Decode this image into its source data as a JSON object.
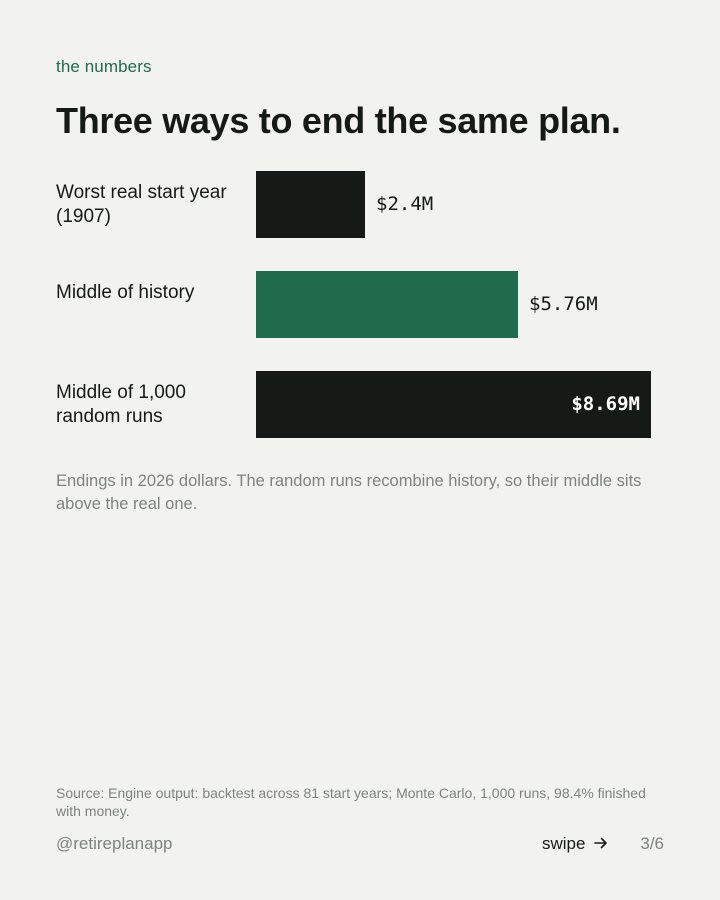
{
  "header": {
    "eyebrow": "the numbers",
    "title": "Three ways to end the same plan."
  },
  "chart_data": {
    "type": "bar",
    "orientation": "horizontal",
    "categories": [
      "Worst real start year (1907)",
      "Middle of history",
      "Middle of 1,000 random runs"
    ],
    "values": [
      2.4,
      5.76,
      8.69
    ],
    "value_labels": [
      "$2.4M",
      "$5.76M",
      "$8.69M"
    ],
    "units": "$M",
    "bar_colors": [
      "#161a17",
      "#1f6b4b",
      "#161a17"
    ],
    "xlim": [
      0,
      8.69
    ],
    "title": "",
    "xlabel": "",
    "ylabel": ""
  },
  "note": "Endings in 2026 dollars. The random runs recombine history, so their middle sits above the real one.",
  "footer": {
    "source": "Source: Engine output: backtest across 81 start years; Monte Carlo, 1,000 runs, 98.4% finished with money.",
    "handle": "@retireplanapp",
    "swipe_label": "swipe",
    "swipe_icon": "arrow-right-icon",
    "page_indicator": "3/6"
  },
  "colors": {
    "background": "#f2f3ee",
    "accent": "#1f6b4b",
    "ink": "#161a17",
    "muted": "#7e837f"
  }
}
